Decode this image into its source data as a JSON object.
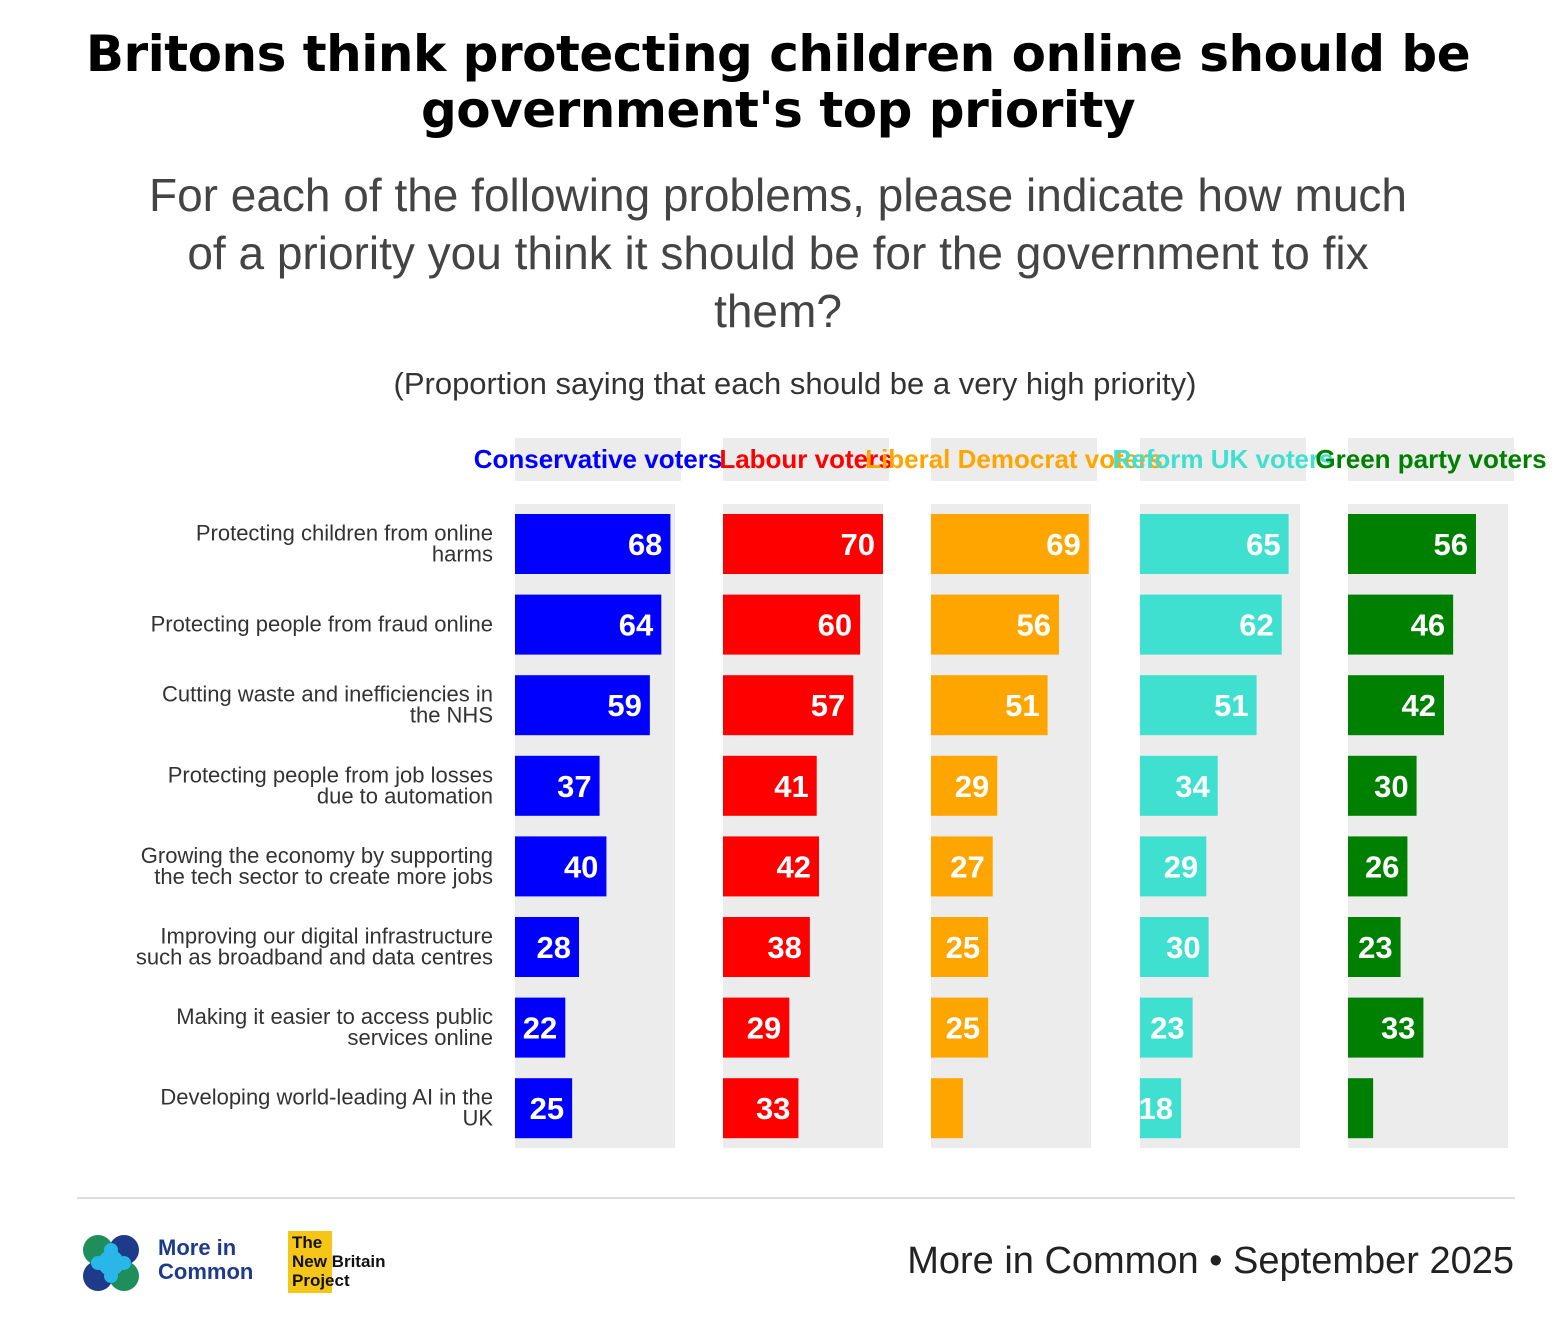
{
  "title_lines": [
    "Britons think protecting children online should be",
    "government's top priority"
  ],
  "subtitle_lines": [
    "For each of the following problems, please indicate how much",
    "of a priority you think it should be for the government to fix",
    "them?"
  ],
  "note": "(Proportion saying that each should be a very high priority)",
  "chart_data": {
    "type": "bar",
    "orientation": "horizontal",
    "layout": "small-multiples",
    "title": "Britons think protecting children online should be government's top priority",
    "xlim": [
      0,
      70
    ],
    "categories": [
      "Protecting children from online harms",
      "Protecting people from fraud online",
      "Cutting waste and inefficiencies in the NHS",
      "Protecting people from job losses due to automation",
      "Growing the economy by supporting the tech sector to create more jobs",
      "Improving our digital infrastructure such as broadband and data centres",
      "Making it easier to access public services online",
      "Developing world-leading AI in the UK"
    ],
    "category_label_lines": [
      [
        "Protecting children from online",
        "harms"
      ],
      [
        "Protecting people from fraud online"
      ],
      [
        "Cutting waste and inefficiencies in",
        "the NHS"
      ],
      [
        "Protecting people from job losses",
        "due to automation"
      ],
      [
        "Growing the economy by supporting",
        "the tech sector to create more jobs"
      ],
      [
        "Improving our digital infrastructure",
        "such as broadband and data centres"
      ],
      [
        "Making it easier to access public",
        "services online"
      ],
      [
        "Developing world-leading AI in the",
        "UK"
      ]
    ],
    "series": [
      {
        "name": "Conservative voters",
        "color": "#0000ff",
        "values": [
          68,
          64,
          59,
          37,
          40,
          28,
          22,
          25
        ],
        "labels": [
          "68",
          "64",
          "59",
          "37",
          "40",
          "28",
          "22",
          "25"
        ]
      },
      {
        "name": "Labour voters",
        "color": "#ff0000",
        "values": [
          70,
          60,
          57,
          41,
          42,
          38,
          29,
          33
        ],
        "labels": [
          "70",
          "60",
          "57",
          "41",
          "42",
          "38",
          "29",
          "33"
        ]
      },
      {
        "name": "Liberal Democrat voters",
        "color": "#ffa500",
        "values": [
          69,
          56,
          51,
          29,
          27,
          25,
          25,
          14
        ],
        "labels": [
          "69",
          "56",
          "51",
          "29",
          "27",
          "25",
          "25",
          ""
        ]
      },
      {
        "name": "Reform UK voters",
        "color": "#40e0d0",
        "values": [
          65,
          62,
          51,
          34,
          29,
          30,
          23,
          18
        ],
        "labels": [
          "65",
          "62",
          "51",
          "34",
          "29",
          "30",
          "23",
          "18"
        ]
      },
      {
        "name": "Green party voters",
        "color": "#008000",
        "values": [
          56,
          46,
          42,
          30,
          26,
          23,
          33,
          11
        ],
        "labels": [
          "56",
          "46",
          "42",
          "30",
          "26",
          "23",
          "33",
          ""
        ]
      }
    ]
  },
  "footer": {
    "logo_lines": [
      "More in",
      "Common"
    ],
    "partner_lines": [
      "The",
      "New Britain",
      "Project"
    ],
    "source": "More in Common • September 2025"
  }
}
